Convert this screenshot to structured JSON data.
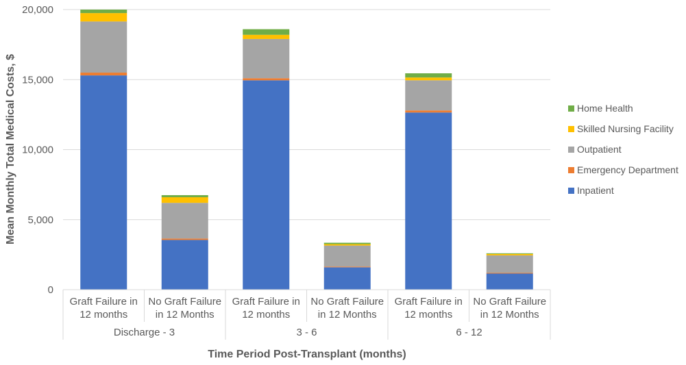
{
  "chart_data": {
    "type": "bar",
    "stacked": true,
    "title": "",
    "ylabel": "Mean Monthly Total Medical Costs, $",
    "xlabel": "Time Period Post-Transplant (months)",
    "ylim": [
      0,
      20000
    ],
    "yticks": [
      0,
      5000,
      10000,
      15000,
      20000
    ],
    "ytick_labels": [
      "0",
      "5,000",
      "10,000",
      "15,000",
      "20,000"
    ],
    "grid": true,
    "legend_position": "right",
    "categories": [
      [
        "Graft Failure in",
        "12 months"
      ],
      [
        "No Graft Failure",
        "in 12 Months"
      ],
      [
        "Graft Failure in",
        "12 months"
      ],
      [
        "No Graft Failure",
        "in 12 Months"
      ],
      [
        "Graft Failure in",
        "12 months"
      ],
      [
        "No Graft Failure",
        "in 12 Months"
      ]
    ],
    "groups": [
      "Discharge - 3",
      "3 - 6",
      "6 - 12"
    ],
    "series": [
      {
        "name": "Inpatient",
        "color": "#4472C4",
        "values": [
          15300,
          3550,
          14950,
          1600,
          12650,
          1150
        ]
      },
      {
        "name": "Emergency Department",
        "color": "#ED7D31",
        "values": [
          200,
          100,
          150,
          50,
          150,
          50
        ]
      },
      {
        "name": "Outpatient",
        "color": "#A5A5A5",
        "values": [
          3650,
          2550,
          2800,
          1500,
          2150,
          1250
        ]
      },
      {
        "name": "Skilled Nursing Facility",
        "color": "#FFC000",
        "values": [
          600,
          400,
          300,
          100,
          200,
          100
        ]
      },
      {
        "name": "Home Health",
        "color": "#70AD47",
        "values": [
          250,
          150,
          400,
          100,
          300,
          50
        ]
      }
    ]
  }
}
